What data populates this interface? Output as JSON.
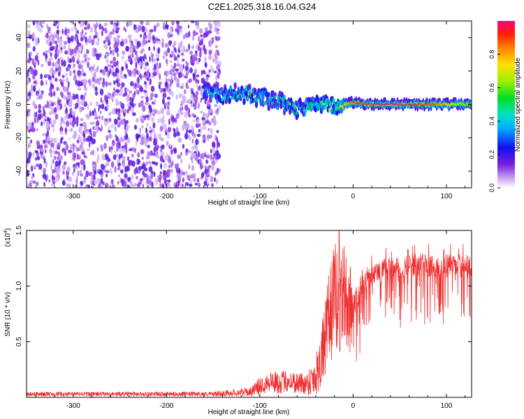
{
  "title": "C2E1.2025.318.16.04.G24",
  "colors": {
    "snr_line": "#ee3030",
    "axis": "#000000",
    "background": "#ffffff"
  },
  "chart_data": [
    {
      "type": "heatmap",
      "name": "spectrogram",
      "xlabel": "Height of straight line (km)",
      "ylabel": "Frequency (Hz)",
      "xlim": [
        -350,
        127
      ],
      "ylim": [
        -50,
        50
      ],
      "x_ticks": [
        -300,
        -200,
        -100,
        0,
        100
      ],
      "x_tick_labels": [
        "-300",
        "-200",
        "-100",
        "0",
        "100"
      ],
      "y_ticks": [
        -40,
        -20,
        0,
        20,
        40
      ],
      "y_tick_labels": [
        "-40",
        "-20",
        "0",
        "20",
        "40"
      ],
      "noise_region_x": [
        -350,
        -143
      ],
      "signal_track": [
        {
          "x": -160,
          "f": 8,
          "amp": 0.35
        },
        {
          "x": -140,
          "f": 5,
          "amp": 0.45
        },
        {
          "x": -120,
          "f": 7,
          "amp": 0.5
        },
        {
          "x": -100,
          "f": 4,
          "amp": 0.5
        },
        {
          "x": -80,
          "f": 2,
          "amp": 0.45
        },
        {
          "x": -60,
          "f": -3,
          "amp": 0.45
        },
        {
          "x": -40,
          "f": 0,
          "amp": 0.5
        },
        {
          "x": -20,
          "f": -1,
          "amp": 0.55
        },
        {
          "x": 0,
          "f": 1,
          "amp": 0.9
        },
        {
          "x": 20,
          "f": 0,
          "amp": 1.0
        },
        {
          "x": 60,
          "f": 0,
          "amp": 1.0
        },
        {
          "x": 90,
          "f": 0,
          "amp": 0.85
        },
        {
          "x": 127,
          "f": 0,
          "amp": 0.55
        }
      ],
      "colorbar": {
        "label": "Normalized spectral amplitude",
        "range": [
          0,
          1
        ],
        "ticks": [
          0.0,
          0.2,
          0.4,
          0.6,
          0.8
        ],
        "tick_labels": [
          "0.0",
          "0.2",
          "0.4",
          "0.6",
          "0.8"
        ]
      }
    },
    {
      "type": "line",
      "name": "snr",
      "xlabel": "Height of straight line (km)",
      "ylabel": "SNR (10 * v/v)",
      "y_scale_label": "(x10",
      "y_scale_exponent": "4",
      "xlim": [
        -350,
        127
      ],
      "ylim": [
        0,
        1.5
      ],
      "x_ticks": [
        -300,
        -200,
        -100,
        0,
        100
      ],
      "x_tick_labels": [
        "-300",
        "-200",
        "-100",
        "0",
        "100"
      ],
      "y_ticks": [
        0.5,
        1.0,
        1.5
      ],
      "y_tick_labels": [
        "0.5",
        "1.0",
        "1.5"
      ],
      "series": [
        {
          "name": "SNR",
          "x": [
            -350,
            -300,
            -250,
            -200,
            -150,
            -110,
            -100,
            -90,
            -80,
            -70,
            -60,
            -50,
            -40,
            -30,
            -25,
            -20,
            -15,
            -10,
            -5,
            0,
            10,
            20,
            30,
            40,
            50,
            60,
            70,
            80,
            90,
            100,
            110,
            120,
            127
          ],
          "y": [
            0.03,
            0.03,
            0.03,
            0.03,
            0.03,
            0.05,
            0.1,
            0.15,
            0.13,
            0.15,
            0.13,
            0.12,
            0.2,
            0.5,
            0.75,
            0.9,
            0.85,
            0.95,
            0.75,
            0.9,
            1.05,
            1.15,
            1.2,
            1.22,
            1.22,
            1.25,
            1.25,
            1.25,
            1.23,
            1.25,
            1.25,
            1.25,
            1.22
          ],
          "noise_amplitude": [
            0.02,
            0.02,
            0.02,
            0.02,
            0.02,
            0.04,
            0.08,
            0.1,
            0.1,
            0.1,
            0.1,
            0.1,
            0.2,
            0.35,
            0.45,
            0.5,
            0.5,
            0.45,
            0.4,
            0.4,
            0.35,
            0.3,
            0.3,
            0.3,
            0.35,
            0.35,
            0.35,
            0.35,
            0.35,
            0.35,
            0.3,
            0.3,
            0.3
          ],
          "peak": {
            "x": -15,
            "y": 1.5
          }
        }
      ]
    }
  ]
}
